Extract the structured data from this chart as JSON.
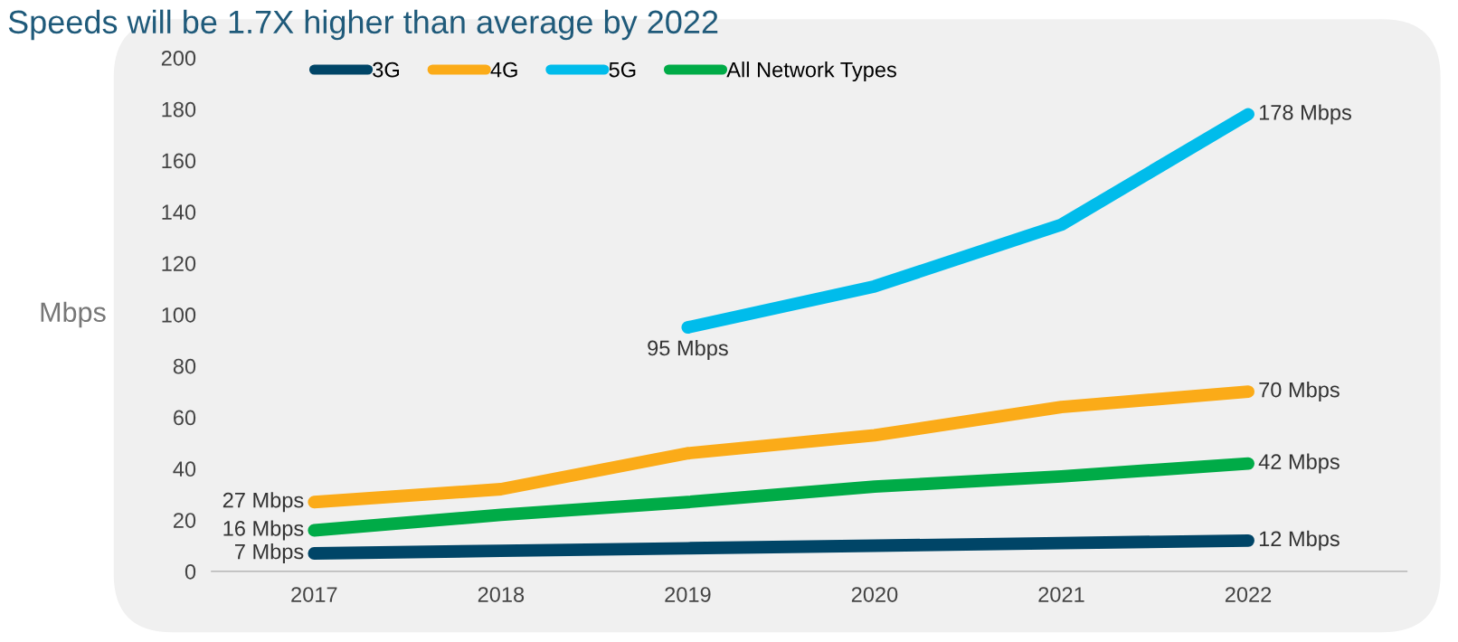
{
  "chart_data": {
    "type": "line",
    "title": "Speeds will be 1.7X higher than average by 2022",
    "ylabel": "Mbps",
    "categories": [
      "2017",
      "2018",
      "2019",
      "2020",
      "2021",
      "2022"
    ],
    "series": [
      {
        "name": "3G",
        "color": "#004567",
        "values": [
          7,
          8,
          9,
          10,
          11,
          12
        ],
        "value_labels": [
          "7 Mbps",
          null,
          null,
          null,
          null,
          "12 Mbps"
        ]
      },
      {
        "name": "4G",
        "color": "#fbab18",
        "values": [
          27,
          32,
          46,
          53,
          64,
          70
        ],
        "value_labels": [
          "27 Mbps",
          null,
          null,
          null,
          null,
          "70 Mbps"
        ]
      },
      {
        "name": "5G",
        "color": "#00bceb",
        "values": [
          null,
          null,
          95,
          111,
          135,
          178
        ],
        "value_labels": [
          null,
          null,
          "95 Mbps",
          null,
          null,
          "178 Mbps"
        ]
      },
      {
        "name": "All Network Types",
        "color": "#00ab47",
        "values": [
          16,
          22,
          27,
          33,
          37,
          42
        ],
        "value_labels": [
          "16 Mbps",
          null,
          null,
          null,
          null,
          "42 Mbps"
        ]
      }
    ],
    "ylim": [
      0,
      200
    ],
    "yticks": [
      0,
      20,
      40,
      60,
      80,
      100,
      120,
      140,
      160,
      180,
      200
    ],
    "grid": false,
    "legend": "top left",
    "line_style": "solid"
  }
}
